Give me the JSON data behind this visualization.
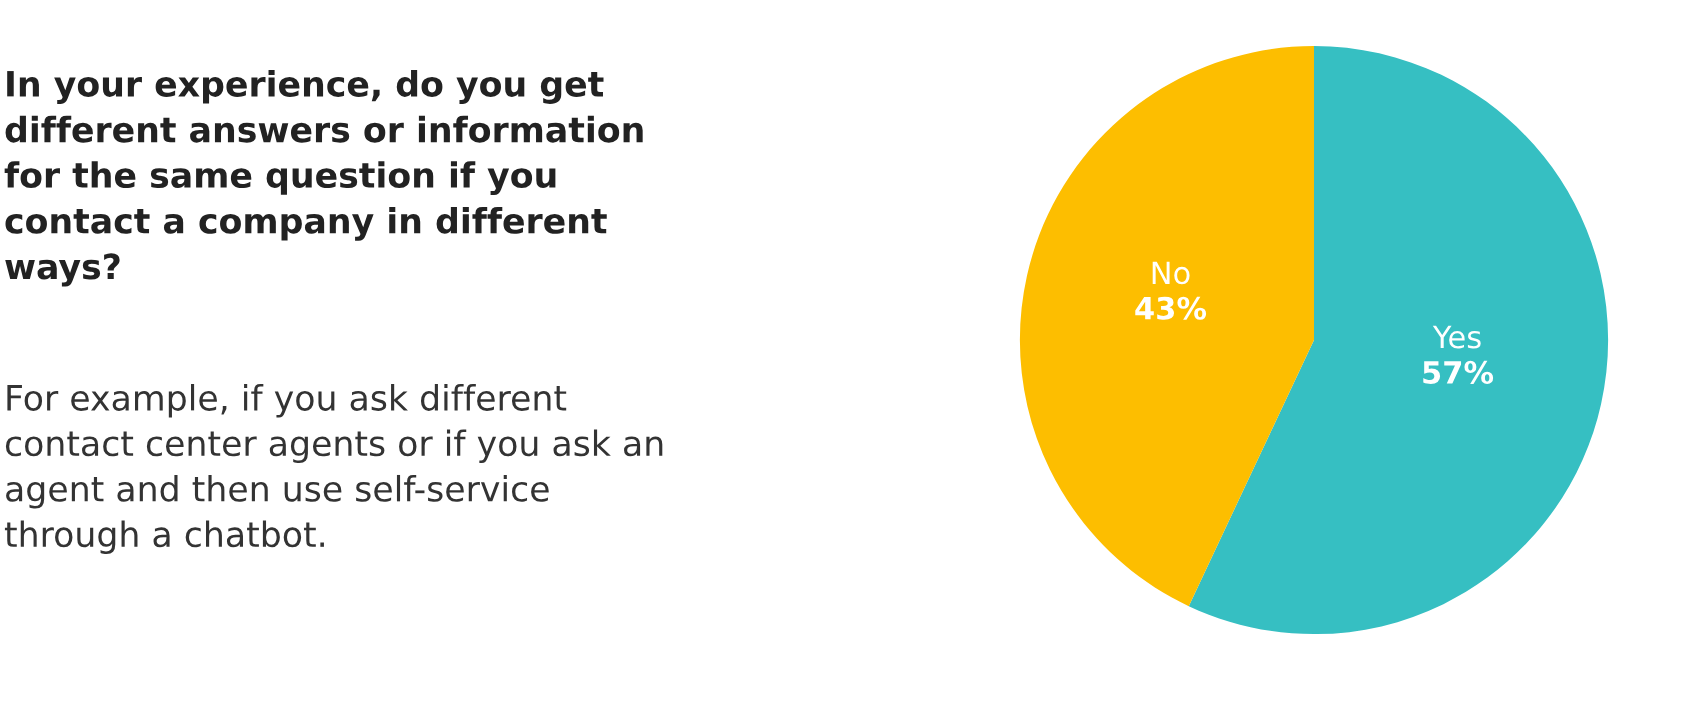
{
  "chart_data": {
    "type": "pie",
    "title": "In your experience, do you get different answers or information for the same question if you contact a company in different ways?",
    "subtitle": "For example, if you ask different contact center agents or if you ask an agent and then use self-service through a chatbot.",
    "categories": [
      "Yes",
      "No"
    ],
    "values": [
      57,
      43
    ],
    "colors": [
      "#36bfc2",
      "#fdbe00"
    ],
    "value_labels": [
      "57%",
      "43%"
    ]
  }
}
